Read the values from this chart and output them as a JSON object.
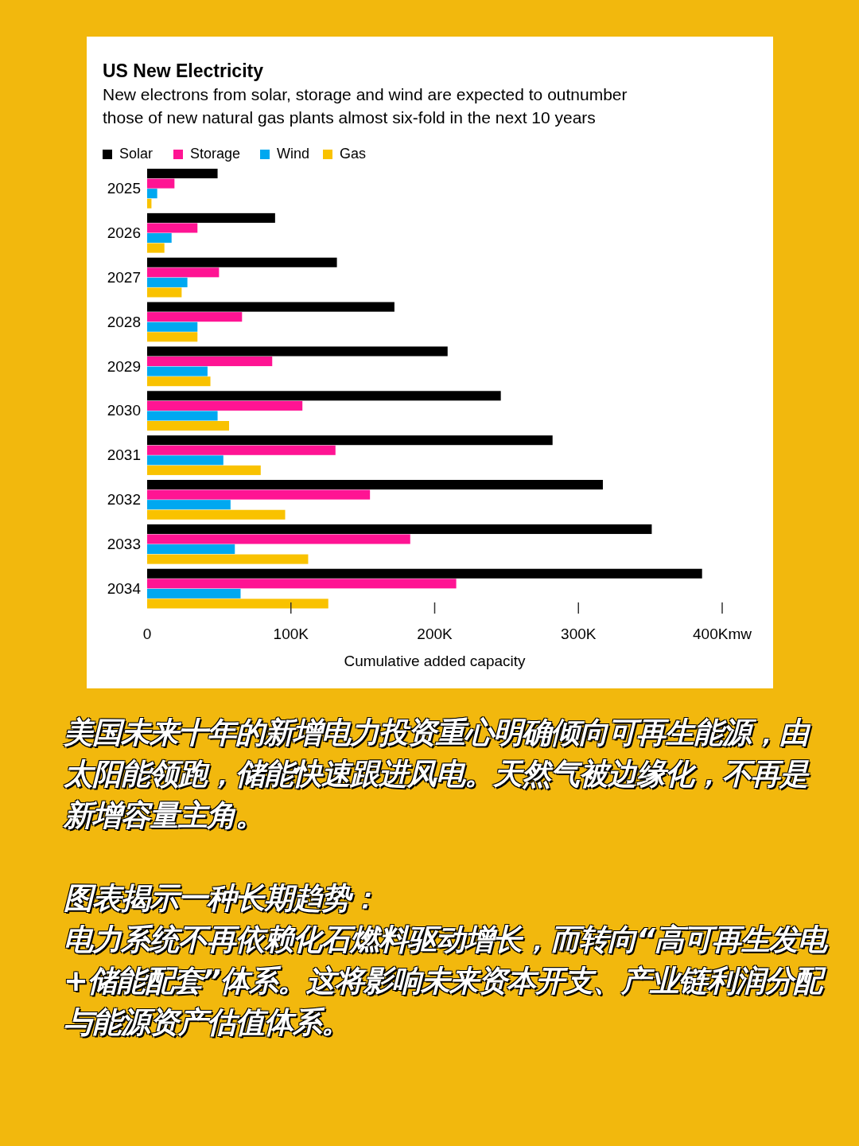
{
  "chart_data": {
    "type": "bar",
    "orientation": "horizontal",
    "title": "US New Electricity",
    "subtitle": "New electrons from solar, storage and wind are expected to outnumber those of new natural gas plants almost six-fold in the next 10 years",
    "xlabel": "Cumulative added capacity",
    "categories": [
      "2025",
      "2026",
      "2027",
      "2028",
      "2029",
      "2030",
      "2031",
      "2032",
      "2033",
      "2034"
    ],
    "series": [
      {
        "name": "Solar",
        "color": "#000000",
        "values": [
          49,
          89,
          132,
          172,
          209,
          246,
          282,
          317,
          351,
          386
        ]
      },
      {
        "name": "Storage",
        "color": "#ff1493",
        "values": [
          19,
          35,
          50,
          66,
          87,
          108,
          131,
          155,
          183,
          215
        ]
      },
      {
        "name": "Wind",
        "color": "#00a8f0",
        "values": [
          7,
          17,
          28,
          35,
          42,
          49,
          53,
          58,
          61,
          65
        ]
      },
      {
        "name": "Gas",
        "color": "#f9c200",
        "values": [
          3,
          12,
          24,
          35,
          44,
          57,
          79,
          96,
          112,
          126
        ]
      }
    ],
    "xlim": [
      0,
      400
    ],
    "xticks": [
      0,
      {
        "value": 100,
        "label": "100K"
      },
      {
        "value": 200,
        "label": "200K"
      },
      {
        "value": 300,
        "label": "300K"
      },
      {
        "value": 400,
        "label": "400Kmw"
      }
    ],
    "legend": "top left",
    "annotations": [
      "美国未来十年的新增电力投资重心明确倾向可再生能源，由太阳能领跑，储能快速跟进风电。天然气被边缘化，不再是新增容量主角。",
      "图表揭示一种长期趋势：",
      "电力系统不再依赖化石燃料驱动增长，而转向“高可再生发电+储能配套”体系。这将影响未来资本开支、产业链利润分配与能源资产估值体系。"
    ]
  }
}
